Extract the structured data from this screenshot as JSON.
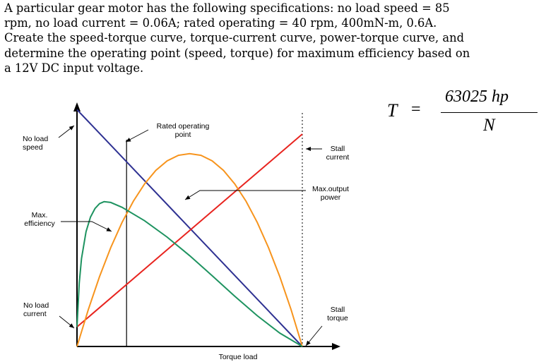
{
  "problem_text": "A particular gear motor has the following specifications:  no load speed = 85 rpm, no load current = 0.06A; rated operating = 40 rpm, 400mN-m, 0.6A.  Create the speed-torque curve, torque-current curve, power-torque curve, and determine the operating point (speed, torque) for maximum efficiency based on a 12V DC input voltage.",
  "formula": {
    "lhs": "T",
    "equals": "=",
    "numerator": "63025  hp",
    "denominator": "N"
  },
  "chart_data": {
    "type": "line",
    "xlabel": "Torque load",
    "ylabel": "",
    "xlim": [
      0,
      1
    ],
    "ylim": [
      0,
      1
    ],
    "series": [
      {
        "key": "speed",
        "color": "#2e3192",
        "points": [
          [
            0,
            0.97
          ],
          [
            1,
            0
          ]
        ]
      },
      {
        "key": "current",
        "color": "#e8241f",
        "points": [
          [
            0,
            0.08
          ],
          [
            1,
            0.87
          ]
        ]
      },
      {
        "key": "power",
        "color": "#f7941d",
        "points": [
          [
            0,
            0
          ],
          [
            0.05,
            0.151
          ],
          [
            0.1,
            0.286
          ],
          [
            0.15,
            0.405
          ],
          [
            0.2,
            0.508
          ],
          [
            0.25,
            0.595
          ],
          [
            0.3,
            0.666
          ],
          [
            0.35,
            0.721
          ],
          [
            0.4,
            0.76
          ],
          [
            0.45,
            0.783
          ],
          [
            0.5,
            0.79
          ],
          [
            0.55,
            0.783
          ],
          [
            0.6,
            0.76
          ],
          [
            0.65,
            0.721
          ],
          [
            0.7,
            0.666
          ],
          [
            0.75,
            0.595
          ],
          [
            0.8,
            0.508
          ],
          [
            0.85,
            0.405
          ],
          [
            0.9,
            0.286
          ],
          [
            0.95,
            0.151
          ],
          [
            1,
            0
          ]
        ]
      },
      {
        "key": "efficiency",
        "color": "#1e9360",
        "points": [
          [
            0,
            0.08
          ],
          [
            0.01,
            0.26
          ],
          [
            0.02,
            0.36
          ],
          [
            0.04,
            0.47
          ],
          [
            0.06,
            0.53
          ],
          [
            0.08,
            0.565
          ],
          [
            0.1,
            0.585
          ],
          [
            0.12,
            0.593
          ],
          [
            0.15,
            0.59
          ],
          [
            0.2,
            0.57
          ],
          [
            0.3,
            0.515
          ],
          [
            0.4,
            0.448
          ],
          [
            0.5,
            0.372
          ],
          [
            0.6,
            0.29
          ],
          [
            0.7,
            0.206
          ],
          [
            0.8,
            0.126
          ],
          [
            0.9,
            0.055
          ],
          [
            1,
            0
          ]
        ]
      }
    ],
    "annotations": {
      "no_load_speed": "No load\nspeed",
      "rated_operating_point": "Rated operating\npoint",
      "stall_current": "Stall\ncurrent",
      "max_output_power": "Max.output\npower",
      "max_efficiency": "Max.\nefficiency",
      "no_load_current": "No load\ncurrent",
      "stall_torque": "Stall\ntorque"
    },
    "rated_operating_torque": 0.22,
    "stall_torque": 1,
    "grid": false,
    "legend": "none"
  }
}
